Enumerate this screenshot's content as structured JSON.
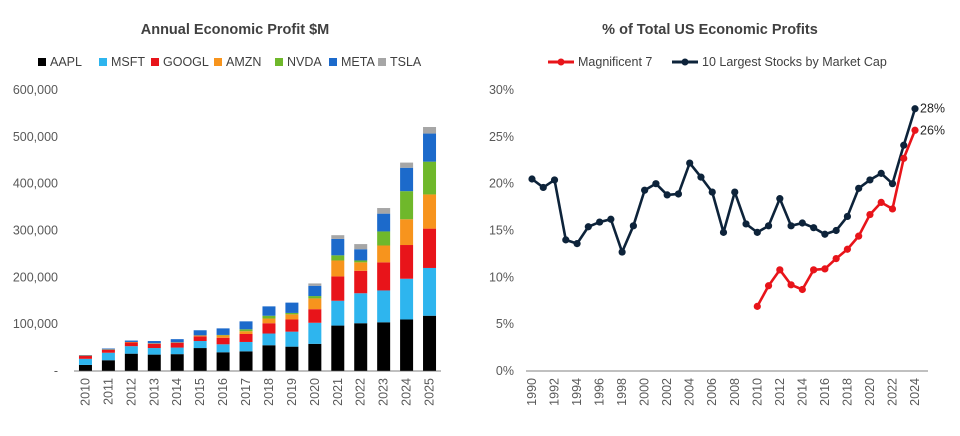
{
  "chart_data": [
    {
      "type": "bar",
      "stacked": true,
      "title": "Annual Economic Profit $M",
      "xlabel": "",
      "ylabel": "",
      "ylim": [
        0,
        600000
      ],
      "yticks": [
        0,
        100000,
        200000,
        300000,
        400000,
        500000,
        600000
      ],
      "ytick_labels": [
        "-",
        "100,000",
        "200,000",
        "300,000",
        "400,000",
        "500,000",
        "600,000"
      ],
      "grid": false,
      "legend_position": "top",
      "categories": [
        "2010",
        "2011",
        "2012",
        "2013",
        "2014",
        "2015",
        "2016",
        "2017",
        "2018",
        "2019",
        "2020",
        "2021",
        "2022",
        "2023",
        "2024",
        "2025"
      ],
      "series": [
        {
          "name": "AAPL",
          "color": "#000000",
          "values": [
            13000,
            23000,
            37000,
            35000,
            36000,
            49000,
            40000,
            42000,
            55000,
            52000,
            58000,
            97000,
            102000,
            104000,
            110000,
            118000
          ]
        },
        {
          "name": "MSFT",
          "color": "#2EB5EE",
          "values": [
            13000,
            16000,
            16000,
            14000,
            14000,
            15000,
            17000,
            20000,
            25000,
            32000,
            45000,
            53000,
            64000,
            68000,
            87000,
            102000
          ]
        },
        {
          "name": "GOOGL",
          "color": "#E8141A",
          "values": [
            6000,
            6000,
            8000,
            9000,
            10000,
            10000,
            14000,
            17000,
            22000,
            26000,
            29000,
            52000,
            48000,
            60000,
            72000,
            84000
          ]
        },
        {
          "name": "AMZN",
          "color": "#F7941D",
          "values": [
            1000,
            1000,
            1000,
            1000,
            1000,
            2000,
            5000,
            6000,
            10000,
            11000,
            23000,
            34000,
            18000,
            36000,
            55000,
            73000
          ]
        },
        {
          "name": "NVDA",
          "color": "#6FB82B",
          "values": [
            0,
            0,
            0,
            0,
            0,
            0,
            1000,
            4000,
            6000,
            3000,
            5000,
            11000,
            4000,
            30000,
            60000,
            70000
          ]
        },
        {
          "name": "META",
          "color": "#1C6ACB",
          "values": [
            1000,
            2000,
            3000,
            5000,
            7000,
            11000,
            14000,
            17000,
            20000,
            22000,
            22000,
            35000,
            24000,
            38000,
            50000,
            60000
          ]
        },
        {
          "name": "TSLA",
          "color": "#A6A6A6",
          "values": [
            0,
            0,
            0,
            0,
            0,
            0,
            0,
            0,
            0,
            0,
            5000,
            8000,
            11000,
            12000,
            11000,
            14000
          ]
        }
      ]
    },
    {
      "type": "line",
      "title": "% of Total US Economic Profits",
      "xlabel": "",
      "ylabel": "",
      "ylim": [
        0,
        30
      ],
      "yticks": [
        0,
        5,
        10,
        15,
        20,
        25,
        30
      ],
      "ytick_labels": [
        "0%",
        "5%",
        "10%",
        "15%",
        "20%",
        "25%",
        "30%"
      ],
      "x_ticks": [
        "1990",
        "1992",
        "1994",
        "1996",
        "1998",
        "2000",
        "2002",
        "2004",
        "2006",
        "2008",
        "2010",
        "2012",
        "2014",
        "2016",
        "2018",
        "2020",
        "2022",
        "2024"
      ],
      "grid": false,
      "legend_position": "top",
      "series": [
        {
          "name": "Magnificent 7",
          "color": "#E8141A",
          "x": [
            2010,
            2011,
            2012,
            2013,
            2014,
            2015,
            2016,
            2017,
            2018,
            2019,
            2020,
            2021,
            2022,
            2023,
            2024
          ],
          "values": [
            6.9,
            9.1,
            10.8,
            9.2,
            8.7,
            10.8,
            10.9,
            12.0,
            13.0,
            14.4,
            16.7,
            18.0,
            17.3,
            22.7,
            25.7
          ],
          "end_label": "26%"
        },
        {
          "name": "10 Largest Stocks by Market Cap",
          "color": "#0D233A",
          "x": [
            1990,
            1991,
            1992,
            1993,
            1994,
            1995,
            1996,
            1997,
            1998,
            1999,
            2000,
            2001,
            2002,
            2003,
            2004,
            2005,
            2006,
            2007,
            2008,
            2009,
            2010,
            2011,
            2012,
            2013,
            2014,
            2015,
            2016,
            2017,
            2018,
            2019,
            2020,
            2021,
            2022,
            2023,
            2024
          ],
          "values": [
            20.5,
            19.6,
            20.4,
            14.0,
            13.6,
            15.4,
            15.9,
            16.2,
            12.7,
            15.5,
            19.3,
            20.0,
            18.8,
            18.9,
            22.2,
            20.7,
            19.1,
            14.8,
            19.1,
            15.7,
            14.8,
            15.5,
            18.4,
            15.5,
            15.8,
            15.3,
            14.6,
            15.0,
            16.5,
            19.5,
            20.4,
            21.1,
            20.0,
            24.1,
            28.0
          ],
          "end_label": "28%"
        }
      ]
    }
  ]
}
